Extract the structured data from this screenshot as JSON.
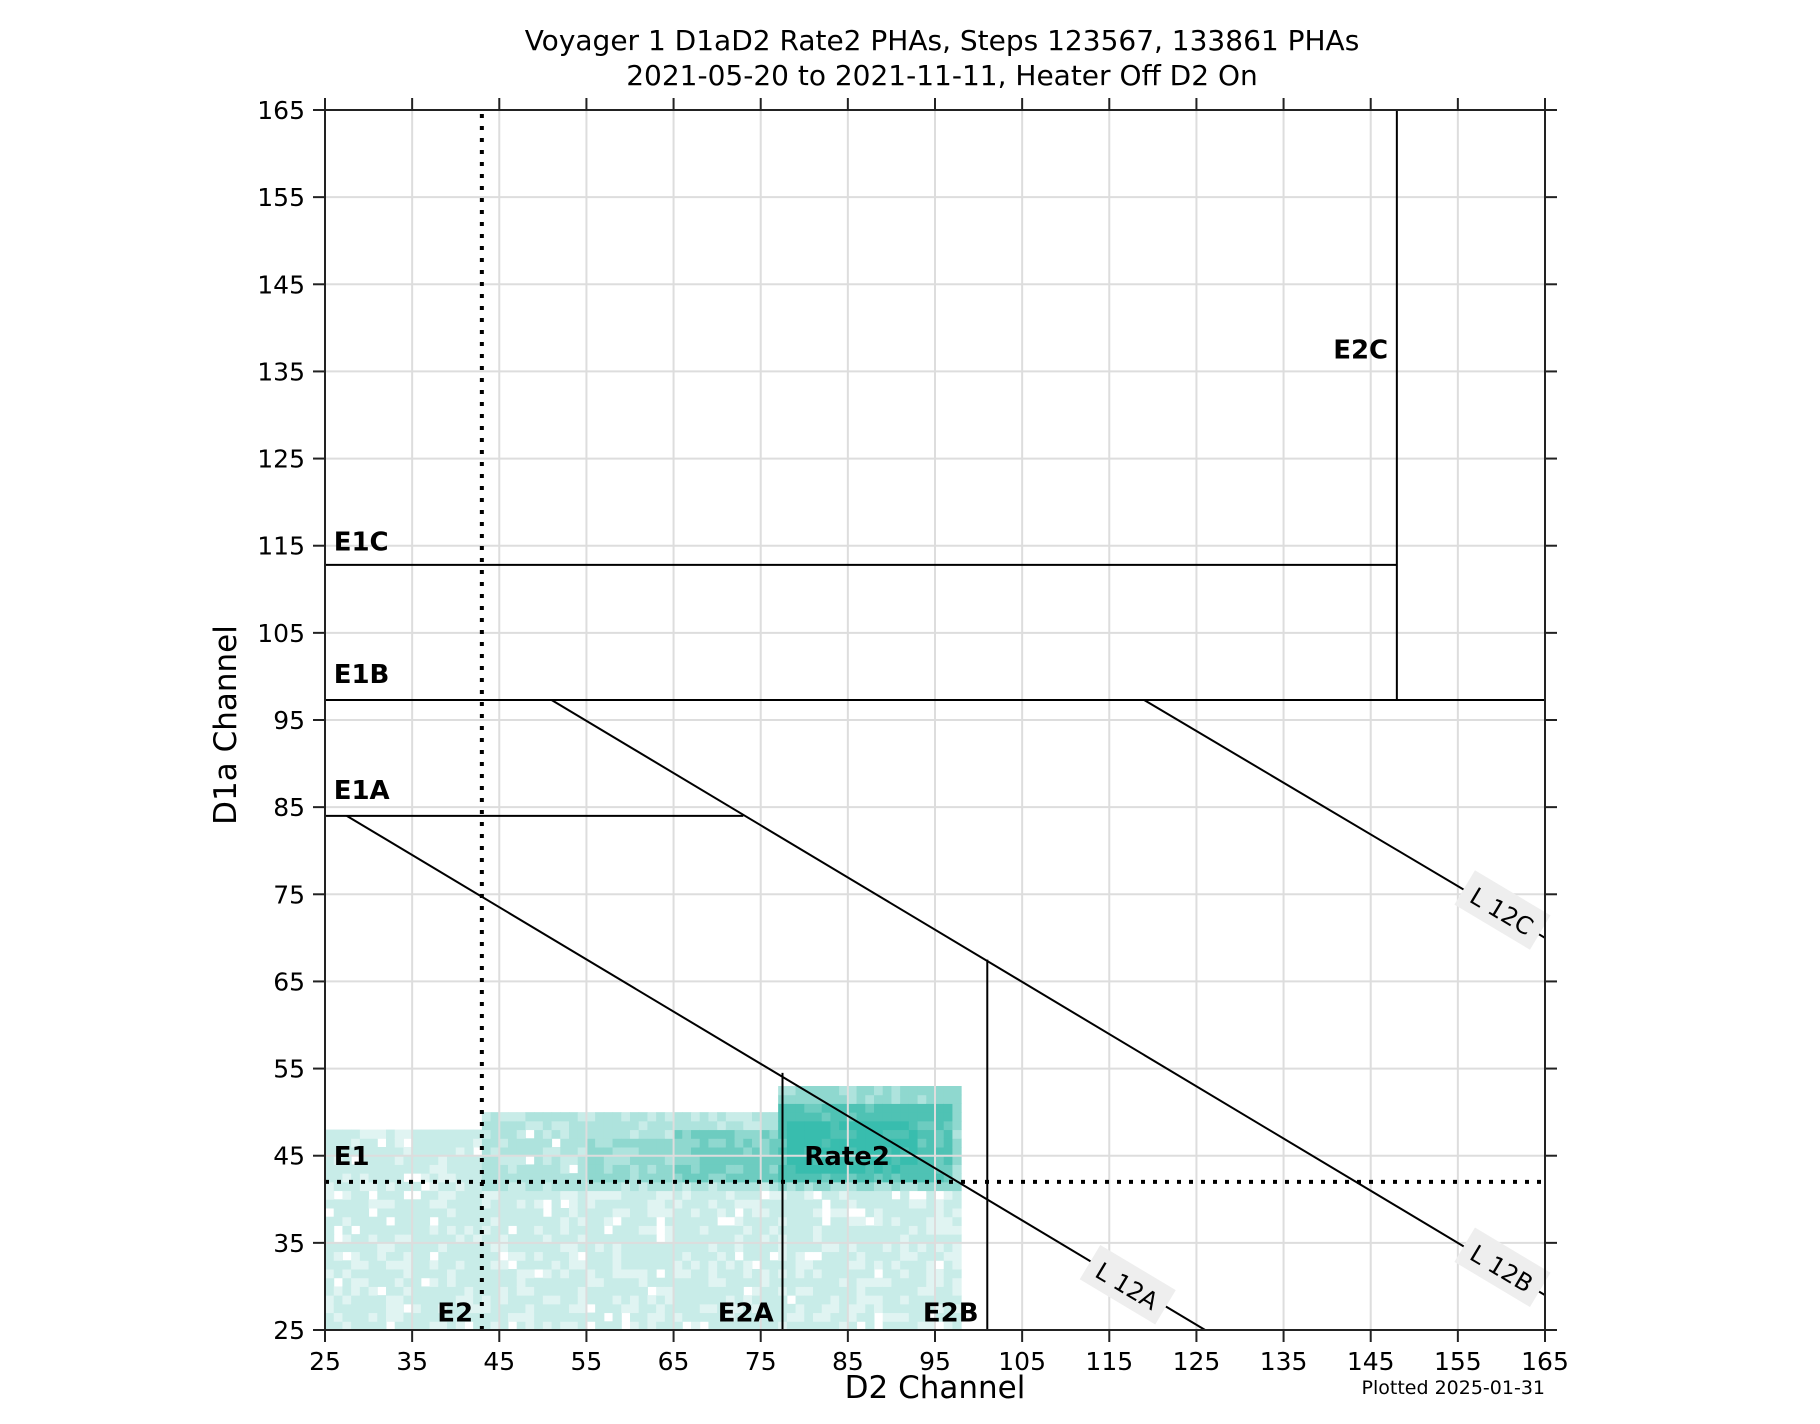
{
  "chart_data": {
    "type": "heatmap",
    "title": "Voyager 1 D1aD2 Rate2 PHAs, Steps 123567, 133861 PHAs",
    "subtitle": "2021-05-20 to 2021-11-11, Heater Off D2 On",
    "xlabel": "D2 Channel",
    "ylabel": "D1a Channel",
    "xlim": [
      25,
      165
    ],
    "ylim": [
      25,
      165
    ],
    "xticks": [
      25,
      35,
      45,
      55,
      65,
      75,
      85,
      95,
      105,
      115,
      125,
      135,
      145,
      155,
      165
    ],
    "yticks": [
      25,
      35,
      45,
      55,
      65,
      75,
      85,
      95,
      105,
      115,
      125,
      135,
      145,
      155,
      165
    ],
    "grid": true,
    "colormap": [
      "#e0f4f2",
      "#c8ece8",
      "#aee3dd",
      "#8fd8cf",
      "#6dccc0",
      "#4fc2b4",
      "#38bdae"
    ],
    "density_bands": [
      {
        "x": [
          25,
          98
        ],
        "y": [
          25,
          41
        ],
        "level": 1
      },
      {
        "x": [
          25,
          43
        ],
        "y": [
          41,
          48
        ],
        "level": 1
      },
      {
        "x": [
          43,
          77.5
        ],
        "y": [
          41,
          50
        ],
        "level": 2
      },
      {
        "x": [
          55,
          77.5
        ],
        "y": [
          42,
          47
        ],
        "level": 3
      },
      {
        "x": [
          65,
          77.5
        ],
        "y": [
          42,
          48
        ],
        "level": 4
      },
      {
        "x": [
          77.5,
          98
        ],
        "y": [
          41,
          53
        ],
        "level": 3
      },
      {
        "x": [
          77.5,
          97
        ],
        "y": [
          42,
          51
        ],
        "level": 5
      },
      {
        "x": [
          78,
          93
        ],
        "y": [
          43,
          49
        ],
        "level": 6
      }
    ],
    "boundaries": [
      {
        "name": "E1C",
        "type": "solid",
        "points": [
          [
            25,
            112.8
          ],
          [
            148,
            112.8
          ]
        ]
      },
      {
        "name": "E2C",
        "type": "solid",
        "points": [
          [
            148,
            97.3
          ],
          [
            148,
            165
          ]
        ]
      },
      {
        "name": "E1B",
        "type": "solid",
        "points": [
          [
            25,
            97.3
          ],
          [
            165,
            97.3
          ]
        ]
      },
      {
        "name": "E1A",
        "type": "solid",
        "points": [
          [
            25,
            84
          ],
          [
            73,
            84
          ]
        ]
      },
      {
        "name": "E1",
        "type": "dotted",
        "points": [
          [
            25,
            42
          ],
          [
            165,
            42
          ]
        ]
      },
      {
        "name": "E2",
        "type": "dotted",
        "points": [
          [
            43,
            25
          ],
          [
            43,
            165
          ]
        ]
      },
      {
        "name": "E2A",
        "type": "solid",
        "points": [
          [
            77.5,
            25
          ],
          [
            77.5,
            54.5
          ]
        ]
      },
      {
        "name": "E2B",
        "type": "solid",
        "points": [
          [
            101,
            25
          ],
          [
            101,
            67.5
          ]
        ]
      },
      {
        "name": "L 12A",
        "type": "solid",
        "points": [
          [
            27.5,
            84
          ],
          [
            126,
            25
          ]
        ]
      },
      {
        "name": "L 12B",
        "type": "solid",
        "points": [
          [
            51,
            97.3
          ],
          [
            165,
            29
          ]
        ]
      },
      {
        "name": "L 12C",
        "type": "solid",
        "points": [
          [
            119,
            97.3
          ],
          [
            165,
            70
          ]
        ]
      }
    ],
    "region_labels": [
      {
        "text": "E1C",
        "x": 26,
        "y": 114
      },
      {
        "text": "E1B",
        "x": 26,
        "y": 98.8
      },
      {
        "text": "E1A",
        "x": 26,
        "y": 85.5
      },
      {
        "text": "E1",
        "x": 26,
        "y": 43.5
      },
      {
        "text": "E2",
        "x": 42,
        "y": 25.5
      },
      {
        "text": "E2A",
        "x": 76.5,
        "y": 25.5
      },
      {
        "text": "E2B",
        "x": 100,
        "y": 25.5
      },
      {
        "text": "E2C",
        "x": 147,
        "y": 136
      },
      {
        "text": "Rate2",
        "x": 80,
        "y": 43.5
      }
    ],
    "line_labels": [
      {
        "text": "L 12A",
        "x": 117,
        "y": 30,
        "angle": 30.9
      },
      {
        "text": "L 12B",
        "x": 160,
        "y": 32,
        "angle": 30.9
      },
      {
        "text": "L 12C",
        "x": 160,
        "y": 73,
        "angle": 30.9
      }
    ],
    "footnote": "Plotted 2025-01-31"
  }
}
